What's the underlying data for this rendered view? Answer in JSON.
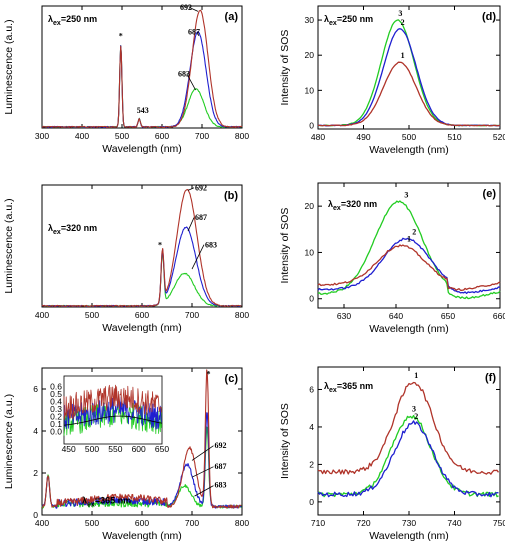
{
  "colors": {
    "series1": "#b0342a",
    "series2": "#1f1fd0",
    "series3": "#22cc22",
    "axis": "#000000"
  },
  "chart_data": [
    {
      "id": "a",
      "type": "line",
      "tag": "(a)",
      "excitation": "λex=250 nm",
      "xlabel": "Wavelength (nm)",
      "ylabel": "Luminescence (a.u.)",
      "xlim": [
        300,
        800
      ],
      "xticks": [
        300,
        400,
        500,
        600,
        700,
        800
      ],
      "ylim": [
        0,
        45
      ],
      "yticks": [],
      "annotations": [
        "*",
        "543",
        "692",
        "687",
        "683"
      ],
      "series": [
        {
          "label": "692",
          "peaks": [
            [
              497,
              30
            ],
            [
              543,
              3
            ],
            [
              695,
              43
            ]
          ]
        },
        {
          "label": "687",
          "peaks": [
            [
              497,
              30
            ],
            [
              543,
              3
            ],
            [
              690,
              35
            ]
          ]
        },
        {
          "label": "683",
          "peaks": [
            [
              497,
              30
            ],
            [
              543,
              3
            ],
            [
              685,
              14
            ]
          ]
        }
      ]
    },
    {
      "id": "b",
      "type": "line",
      "tag": "(b)",
      "excitation": "λex=320 nm",
      "xlabel": "Wavelength (nm)",
      "ylabel": "Luminescence (a.u.)",
      "xlim": [
        400,
        800
      ],
      "xticks": [
        400,
        500,
        600,
        700,
        800
      ],
      "ylim": [
        0,
        45
      ],
      "yticks": [],
      "annotations": [
        "*",
        "692",
        "687",
        "683"
      ],
      "series": [
        {
          "label": "692",
          "peaks": [
            [
              641,
              19
            ],
            [
              690,
              43
            ]
          ]
        },
        {
          "label": "687",
          "peaks": [
            [
              641,
              19
            ],
            [
              688,
              29
            ]
          ]
        },
        {
          "label": "683",
          "peaks": [
            [
              641,
              19
            ],
            [
              685,
              12
            ]
          ]
        }
      ]
    },
    {
      "id": "c",
      "type": "line",
      "tag": "(c)",
      "excitation": "λex=365 nm",
      "xlabel": "Wavelength (nm)",
      "ylabel": "Luminescence (a.u.)",
      "xlim": [
        400,
        800
      ],
      "xticks": [
        400,
        500,
        600,
        700,
        800
      ],
      "ylim": [
        0,
        7
      ],
      "yticks": [
        0,
        2,
        4,
        6
      ],
      "annotations": [
        "*",
        "692",
        "687",
        "683"
      ],
      "series": [
        {
          "label": "692",
          "peaks": [
            [
              412,
              1.5
            ],
            [
              695,
              2.8
            ],
            [
              730,
              6.5
            ]
          ]
        },
        {
          "label": "687",
          "peaks": [
            [
              412,
              1.5
            ],
            [
              690,
              2.0
            ],
            [
              730,
              4.6
            ]
          ]
        },
        {
          "label": "683",
          "peaks": [
            [
              412,
              1.5
            ],
            [
              685,
              1.0
            ],
            [
              730,
              3.8
            ]
          ]
        }
      ],
      "inset": {
        "xlim": [
          440,
          650
        ],
        "xticks": [
          450,
          500,
          550,
          600,
          650
        ],
        "ylim": [
          -0.15,
          0.75
        ],
        "yticks": [
          0.0,
          0.1,
          0.2,
          0.3,
          0.4,
          0.5,
          0.6
        ]
      }
    },
    {
      "id": "d",
      "type": "line",
      "tag": "(d)",
      "excitation": "λex=250 nm",
      "xlabel": "Wavelength (nm)",
      "ylabel": "Intensity of SOS",
      "xlim": [
        480,
        520
      ],
      "xticks": [
        480,
        490,
        500,
        510,
        520
      ],
      "ylim": [
        -1,
        34
      ],
      "yticks": [
        0,
        10,
        20,
        30
      ],
      "series": [
        {
          "label": "1",
          "peak_x": 498,
          "peak_y": 18
        },
        {
          "label": "2",
          "peak_x": 498,
          "peak_y": 27.5
        },
        {
          "label": "3",
          "peak_x": 497.5,
          "peak_y": 30
        }
      ]
    },
    {
      "id": "e",
      "type": "line",
      "tag": "(e)",
      "excitation": "λex=320 nm",
      "xlabel": "Wavelength (nm)",
      "ylabel": "Intensity of SOS",
      "xlim": [
        625,
        660
      ],
      "xticks": [
        630,
        640,
        650,
        660
      ],
      "ylim": [
        -2,
        25
      ],
      "yticks": [
        0,
        10,
        20
      ],
      "series": [
        {
          "label": "1",
          "peak_x": 641,
          "peak_y": 11.5
        },
        {
          "label": "2",
          "peak_x": 642,
          "peak_y": 13
        },
        {
          "label": "3",
          "peak_x": 640.5,
          "peak_y": 21
        }
      ]
    },
    {
      "id": "f",
      "type": "line",
      "tag": "(f)",
      "excitation": "λex=365 nm",
      "xlabel": "Wavelength (nm)",
      "ylabel": "Intensity of SOS",
      "xlim": [
        710,
        750
      ],
      "xticks": [
        710,
        720,
        730,
        740,
        750
      ],
      "ylim": [
        -0.7,
        7.2
      ],
      "yticks": [
        0,
        2,
        4,
        6
      ],
      "series": [
        {
          "label": "1",
          "peak_x": 731,
          "peak_y": 6.4
        },
        {
          "label": "2",
          "peak_x": 731,
          "peak_y": 4.2
        },
        {
          "label": "3",
          "peak_x": 730.5,
          "peak_y": 4.6
        }
      ]
    }
  ]
}
